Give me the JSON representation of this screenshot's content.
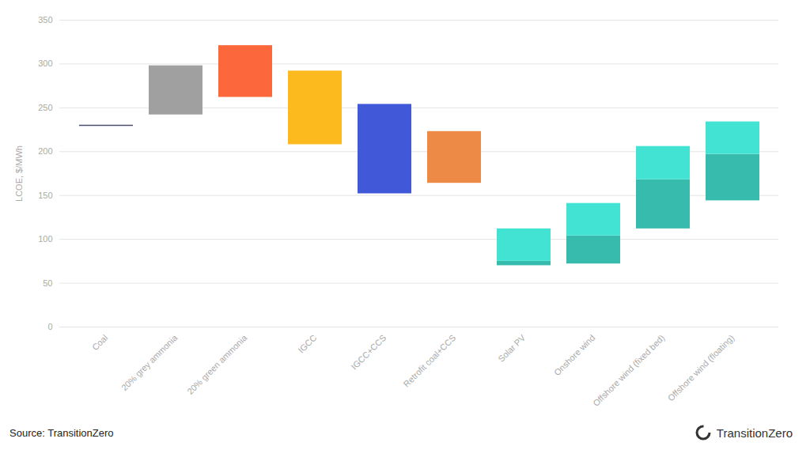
{
  "chart_data": {
    "type": "range_bar",
    "y_label": "LCOE, $/MWh",
    "categories": [
      "Coal",
      "20% grey ammonia",
      "20% green ammonia",
      "IGCC",
      "IGCC+CCS",
      "Retrofit coal+CCS",
      "Solar PV",
      "Onshore wind",
      "Offshore wind (fixed bed)",
      "Offshore wind (floating)"
    ],
    "low": [
      230,
      242,
      262,
      208,
      152,
      164,
      70,
      72,
      112,
      144
    ],
    "mid": [
      null,
      null,
      null,
      null,
      null,
      null,
      75,
      104,
      168,
      197
    ],
    "high": [
      230,
      298,
      321,
      292,
      254,
      223,
      112,
      141,
      206,
      234
    ],
    "colors": [
      "#4a4d6e",
      "#a0a0a0",
      "#fc683c",
      "#fdba1f",
      "#4159d9",
      "#ed8a45",
      "#42e3d2",
      "#42e3d2",
      "#42e3d2",
      "#42e3d2"
    ],
    "ylim": [
      0,
      350
    ],
    "yticks": [
      0,
      50,
      100,
      150,
      200,
      250,
      300,
      350
    ],
    "grid": true,
    "source": "Source: TransitionZero",
    "brand": "TransitionZero"
  }
}
